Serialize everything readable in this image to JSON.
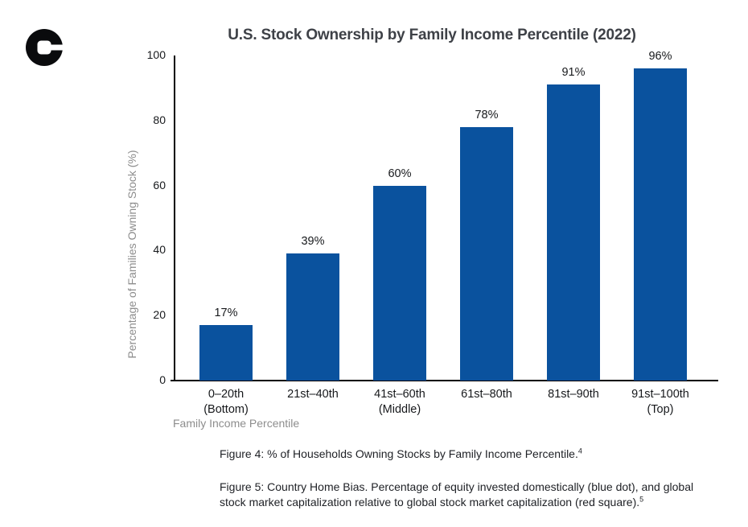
{
  "chart_data": {
    "type": "bar",
    "title": "U.S. Stock Ownership by Family Income Percentile (2022)",
    "xlabel": "Family Income Percentile",
    "ylabel": "Percentage of Families Owning Stock (%)",
    "ylim": [
      0,
      100
    ],
    "yticks": [
      0,
      20,
      40,
      60,
      80,
      100
    ],
    "categories": [
      {
        "line1": "0–20th",
        "line2": "(Bottom)"
      },
      {
        "line1": "21st–40th",
        "line2": ""
      },
      {
        "line1": "41st–60th",
        "line2": "(Middle)"
      },
      {
        "line1": "61st–80th",
        "line2": ""
      },
      {
        "line1": "81st–90th",
        "line2": ""
      },
      {
        "line1": "91st–100th",
        "line2": "(Top)"
      }
    ],
    "values": [
      17,
      39,
      60,
      78,
      91,
      96
    ],
    "bar_labels": [
      "17%",
      "39%",
      "60%",
      "78%",
      "91%",
      "96%"
    ],
    "bar_color": "#0a529e",
    "grid": false,
    "legend": "none"
  },
  "captions": {
    "figure4": {
      "text": "Figure 4: % of Households Owning Stocks by Family Income Percentile.",
      "superscript": "4"
    },
    "figure5": {
      "text": "Figure 5: Country Home Bias. Percentage of equity invested domestically (blue dot), and global stock market capitalization relative to global stock market capitalization (red square).",
      "superscript": "5"
    }
  },
  "colors": {
    "bar": "#0a529e",
    "title_text": "#3e4147",
    "axis_text": "#17191c",
    "muted_text": "#8d8d8d",
    "caption_text": "#1e2025",
    "axis_line": "#000000",
    "background": "#ffffff",
    "logo": "#0a0b0d"
  }
}
